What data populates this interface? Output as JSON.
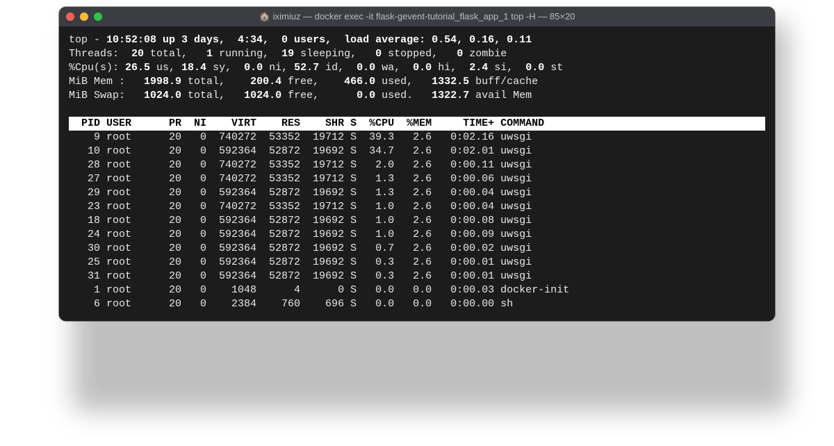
{
  "window": {
    "title_prefix": "🏠",
    "title": "iximiuz — docker exec -it flask-gevent-tutorial_flask_app_1 top -H — 85×20"
  },
  "summary": {
    "line1_a": "top - ",
    "line1_time": "10:52:08 up 3 days,  4:34,  0 users,  load average: 0.54, 0.16, 0.11",
    "threads_label": "Threads:  ",
    "threads_total": "20",
    "threads_total_suf": " total,   ",
    "threads_running": "1",
    "threads_running_suf": " running,  ",
    "threads_sleeping": "19",
    "threads_sleeping_suf": " sleeping,   ",
    "threads_stopped": "0",
    "threads_stopped_suf": " stopped,   ",
    "threads_zombie": "0",
    "threads_zombie_suf": " zombie",
    "cpu_label": "%Cpu(s): ",
    "cpu_us": "26.5",
    "cpu_us_suf": " us, ",
    "cpu_sy": "18.4",
    "cpu_sy_suf": " sy,  ",
    "cpu_ni": "0.0",
    "cpu_ni_suf": " ni, ",
    "cpu_id": "52.7",
    "cpu_id_suf": " id,  ",
    "cpu_wa": "0.0",
    "cpu_wa_suf": " wa,  ",
    "cpu_hi": "0.0",
    "cpu_hi_suf": " hi,  ",
    "cpu_si": "2.4",
    "cpu_si_suf": " si,  ",
    "cpu_st": "0.0",
    "cpu_st_suf": " st",
    "mem_label": "MiB Mem :   ",
    "mem_total": "1998.9",
    "mem_total_suf": " total,    ",
    "mem_free": "200.4",
    "mem_free_suf": " free,    ",
    "mem_used": "466.0",
    "mem_used_suf": " used,   ",
    "mem_buff": "1332.5",
    "mem_buff_suf": " buff/cache",
    "swap_label": "MiB Swap:   ",
    "swap_total": "1024.0",
    "swap_total_suf": " total,   ",
    "swap_free": "1024.0",
    "swap_free_suf": " free,      ",
    "swap_used": "0.0",
    "swap_used_suf": " used.   ",
    "swap_avail": "1322.7",
    "swap_avail_suf": " avail Mem"
  },
  "header_row": "  PID USER      PR  NI    VIRT    RES    SHR S  %CPU  %MEM     TIME+ COMMAND           ",
  "rows": [
    "    9 root      20   0  740272  53352  19712 S  39.3   2.6   0:02.16 uwsgi",
    "   10 root      20   0  592364  52872  19692 S  34.7   2.6   0:02.01 uwsgi",
    "   28 root      20   0  740272  53352  19712 S   2.0   2.6   0:00.11 uwsgi",
    "   27 root      20   0  740272  53352  19712 S   1.3   2.6   0:00.06 uwsgi",
    "   29 root      20   0  592364  52872  19692 S   1.3   2.6   0:00.04 uwsgi",
    "   23 root      20   0  740272  53352  19712 S   1.0   2.6   0:00.04 uwsgi",
    "   18 root      20   0  592364  52872  19692 S   1.0   2.6   0:00.08 uwsgi",
    "   24 root      20   0  592364  52872  19692 S   1.0   2.6   0:00.09 uwsgi",
    "   30 root      20   0  592364  52872  19692 S   0.7   2.6   0:00.02 uwsgi",
    "   25 root      20   0  592364  52872  19692 S   0.3   2.6   0:00.01 uwsgi",
    "   31 root      20   0  592364  52872  19692 S   0.3   2.6   0:00.01 uwsgi",
    "    1 root      20   0    1048      4      0 S   0.0   0.0   0:00.03 docker-init",
    "    6 root      20   0    2384    760    696 S   0.0   0.0   0:00.00 sh"
  ],
  "colors": {
    "window_bg": "#1c1c1c",
    "titlebar_bg": "#3a3d42",
    "text": "#e8e8e8",
    "bold": "#ffffff",
    "header_bg": "#ffffff",
    "header_fg": "#000000",
    "red": "#ff5f57",
    "yellow": "#febc2e",
    "green": "#28c840"
  }
}
